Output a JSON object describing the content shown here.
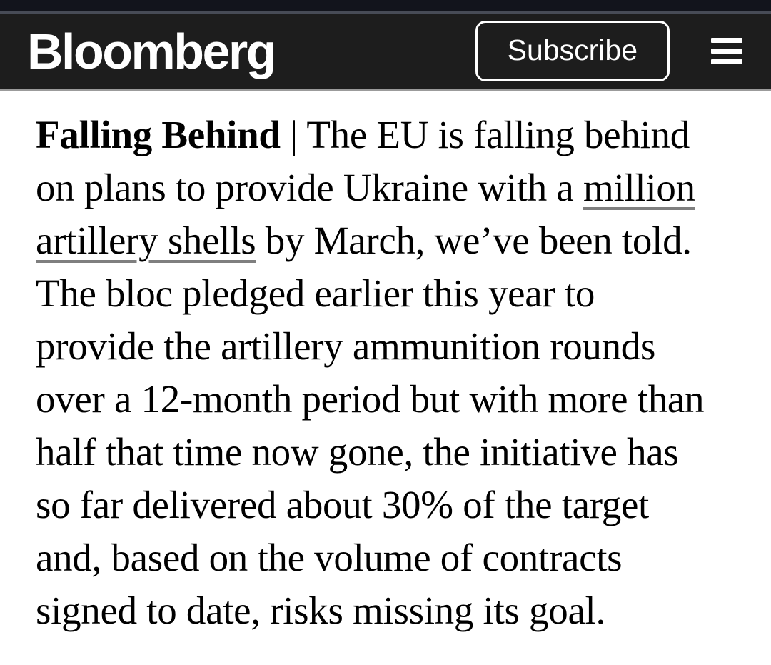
{
  "colors": {
    "page_bg": "#ffffff",
    "status_strip": "#12141c",
    "status_divider": "#474b56",
    "header_bg": "#1d1d1d",
    "header_border": "#9b9b9b",
    "header_text": "#ffffff",
    "body_text": "#000000",
    "link_underline": "#7f7f7f"
  },
  "header": {
    "brand": "Bloomberg",
    "subscribe_label": "Subscribe",
    "menu_icon": "hamburger-icon"
  },
  "article": {
    "runs": [
      {
        "type": "bold",
        "text": "Falling Behind"
      },
      {
        "type": "text",
        "text": " | The EU is falling behind\non plans to provide Ukraine with a "
      },
      {
        "type": "link",
        "text": "million\nartillery shells"
      },
      {
        "type": "text",
        "text": " by March, we’ve been told.\nThe bloc pledged earlier this year to\nprovide the artillery ammunition rounds\nover a 12-month period but with more than\nhalf that time now gone, the initiative has\nso far delivered about 30% of the target\nand, based on the volume of contracts\nsigned to date, risks missing its goal."
      }
    ]
  }
}
